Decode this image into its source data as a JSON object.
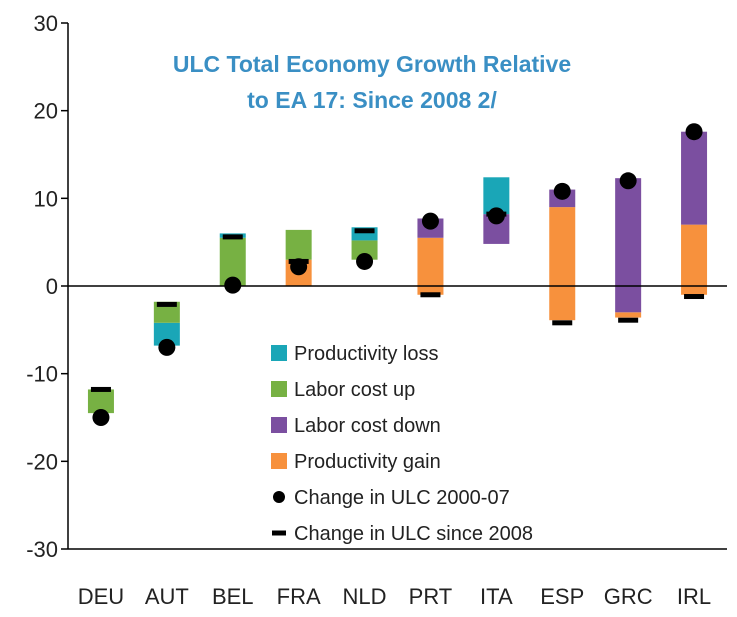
{
  "chart_data": {
    "type": "bar",
    "title_lines": [
      "ULC Total Economy Growth  Relative",
      "to EA 17: Since 2008 2/"
    ],
    "ylim": [
      -30,
      30
    ],
    "yticks": [
      30,
      20,
      10,
      0,
      -10,
      -20,
      -30
    ],
    "ytick_labels": [
      "30",
      "20",
      "10",
      "0",
      "-10",
      "-20",
      "-30"
    ],
    "categories": [
      "DEU",
      "AUT",
      "BEL",
      "FRA",
      "NLD",
      "PRT",
      "ITA",
      "ESP",
      "GRC",
      "IRL"
    ],
    "colors": {
      "productivity_loss": "#1aa6b7",
      "labor_cost_up": "#77b143",
      "labor_cost_down": "#7b4fa0",
      "productivity_gain": "#f7913d",
      "marker": "#000000"
    },
    "segments": [
      {
        "category": "DEU",
        "component": "labor_cost_up",
        "from": -14.5,
        "to": -11.8
      },
      {
        "category": "AUT",
        "component": "productivity_loss",
        "from": -6.8,
        "to": -4.2
      },
      {
        "category": "AUT",
        "component": "labor_cost_up",
        "from": -4.2,
        "to": -1.8
      },
      {
        "category": "BEL",
        "component": "labor_cost_up",
        "from": 0.0,
        "to": 5.5
      },
      {
        "category": "BEL",
        "component": "productivity_loss",
        "from": 5.5,
        "to": 6.0
      },
      {
        "category": "FRA",
        "component": "productivity_gain",
        "from": 0.0,
        "to": 3.0
      },
      {
        "category": "FRA",
        "component": "labor_cost_up",
        "from": 3.0,
        "to": 6.4
      },
      {
        "category": "NLD",
        "component": "labor_cost_up",
        "from": 3.0,
        "to": 5.2
      },
      {
        "category": "NLD",
        "component": "productivity_loss",
        "from": 5.2,
        "to": 6.7
      },
      {
        "category": "PRT",
        "component": "productivity_gain",
        "from": -1.0,
        "to": 5.5
      },
      {
        "category": "PRT",
        "component": "labor_cost_down",
        "from": 5.5,
        "to": 7.7
      },
      {
        "category": "ITA",
        "component": "labor_cost_down",
        "from": 4.8,
        "to": 8.2
      },
      {
        "category": "ITA",
        "component": "productivity_loss",
        "from": 8.2,
        "to": 12.4
      },
      {
        "category": "ESP",
        "component": "productivity_gain",
        "from": -3.9,
        "to": 9.0
      },
      {
        "category": "ESP",
        "component": "labor_cost_down",
        "from": 9.0,
        "to": 11.0
      },
      {
        "category": "GRC",
        "component": "productivity_gain",
        "from": -3.6,
        "to": -3.0
      },
      {
        "category": "GRC",
        "component": "labor_cost_down",
        "from": -3.0,
        "to": 12.3
      },
      {
        "category": "IRL",
        "component": "productivity_gain",
        "from": -1.0,
        "to": 7.0
      },
      {
        "category": "IRL",
        "component": "labor_cost_down",
        "from": 7.0,
        "to": 17.6
      }
    ],
    "change_ulc_2000_07": {
      "DEU": -15.0,
      "AUT": -7.0,
      "BEL": 0.1,
      "FRA": 2.2,
      "NLD": 2.8,
      "PRT": 7.4,
      "ITA": 8.0,
      "ESP": 10.8,
      "GRC": 12.0,
      "IRL": 17.6
    },
    "change_ulc_since_2008": {
      "DEU": -11.8,
      "AUT": -2.1,
      "BEL": 5.6,
      "FRA": 2.8,
      "NLD": 6.3,
      "PRT": -1.0,
      "ITA": 8.2,
      "ESP": -4.2,
      "GRC": -3.9,
      "IRL": -1.2
    },
    "legend": [
      {
        "key": "productivity_loss",
        "label": "Productivity loss",
        "symbol": "box"
      },
      {
        "key": "labor_cost_up",
        "label": "Labor cost up",
        "symbol": "box"
      },
      {
        "key": "labor_cost_down",
        "label": "Labor cost down",
        "symbol": "box"
      },
      {
        "key": "productivity_gain",
        "label": "Productivity gain",
        "symbol": "box"
      },
      {
        "key": "marker",
        "label": "Change in ULC 2000-07",
        "symbol": "dot"
      },
      {
        "key": "marker",
        "label": "Change in ULC since 2008",
        "symbol": "dash"
      }
    ]
  }
}
